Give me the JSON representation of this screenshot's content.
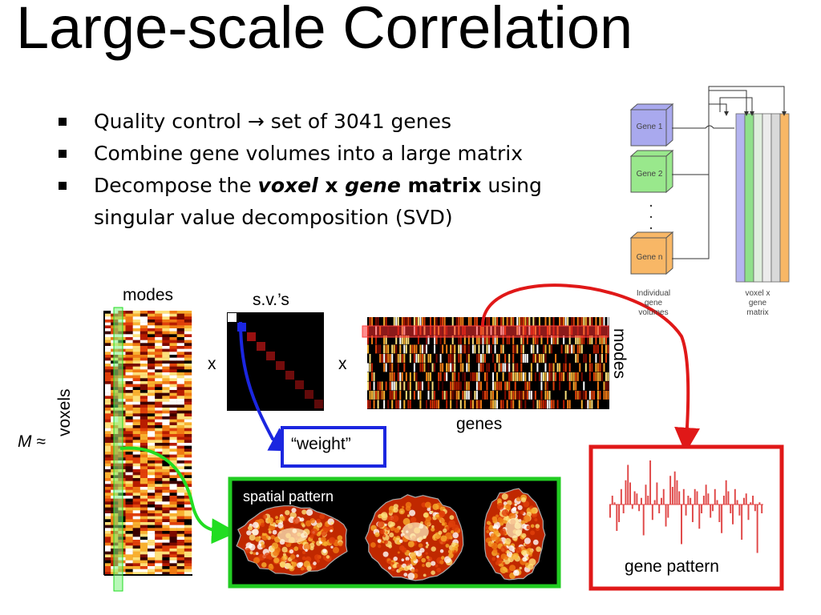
{
  "title": "Large-scale Correlation",
  "bullets": [
    {
      "parts": [
        {
          "text": "Quality control → set of 3041 genes",
          "style": "normal"
        }
      ]
    },
    {
      "parts": [
        {
          "text": "Combine gene volumes into a large matrix",
          "style": "normal"
        }
      ]
    },
    {
      "parts": [
        {
          "text": "Decompose the ",
          "style": "normal"
        },
        {
          "text": "voxel",
          "style": "bolditalic"
        },
        {
          "text": " x ",
          "style": "bold"
        },
        {
          "text": "gene",
          "style": "bolditalic"
        },
        {
          "text": " matrix",
          "style": "bold"
        },
        {
          "text": " using singular value decomposition (SVD)",
          "style": "normal"
        }
      ]
    }
  ],
  "inset": {
    "genes": [
      {
        "label": "Gene 1",
        "color": "#a9a9ee"
      },
      {
        "label": "Gene 2",
        "color": "#99e88c"
      },
      {
        "label": "Gene n",
        "color": "#f8b766"
      }
    ],
    "column_colors": [
      "#b4b4f0",
      "#8fe08a",
      "#dfeedd",
      "#ececec",
      "#d9d9d9",
      "#f8b766"
    ],
    "left_caption": [
      "Individual",
      "gene",
      "volumes"
    ],
    "right_caption": [
      "voxel x",
      "gene",
      "matrix"
    ]
  },
  "matrix_labels": {
    "modes_top": "modes",
    "voxels": "voxels",
    "m_approx": "M ≈",
    "times_1": "x",
    "times_2": "x",
    "sv": "s.v.’s",
    "genes": "genes",
    "modes_right": "modes",
    "weight": "“weight”"
  },
  "spatial": {
    "title": "spatial pattern",
    "frame_color": "#22cc22"
  },
  "gene_pattern": {
    "title": "gene pattern",
    "frame_color": "#e01818",
    "bars": [
      -0.3,
      0.2,
      0.05,
      -0.6,
      -0.4,
      0.35,
      -0.2,
      0.55,
      0.9,
      0.5,
      -0.1,
      0.3,
      0.25,
      -0.15,
      0.15,
      -0.7,
      0.45,
      0.2,
      1.0,
      -0.35,
      0.1,
      0.5,
      -0.2,
      0.15,
      0.35,
      -0.5,
      -0.3,
      0.65,
      0.4,
      0.75,
      0.55,
      0.3,
      -0.9,
      0.35,
      -0.25,
      0.2,
      0.15,
      -0.4,
      0.35,
      0.3,
      -0.55,
      -0.2,
      0.2,
      0.45,
      0.25,
      -0.3,
      -0.15,
      0.35,
      0.1,
      -0.4,
      -0.65,
      0.2,
      0.55,
      0.3,
      -0.2,
      -0.45,
      0.35,
      0.1,
      -0.25,
      -0.8,
      0.15,
      0.25,
      -0.35,
      0.05,
      0.2,
      -0.15,
      -1.1,
      0.05,
      -0.2
    ]
  },
  "colors": {
    "green": "#22dd22",
    "red": "#e01818",
    "blue": "#1b26e0"
  }
}
